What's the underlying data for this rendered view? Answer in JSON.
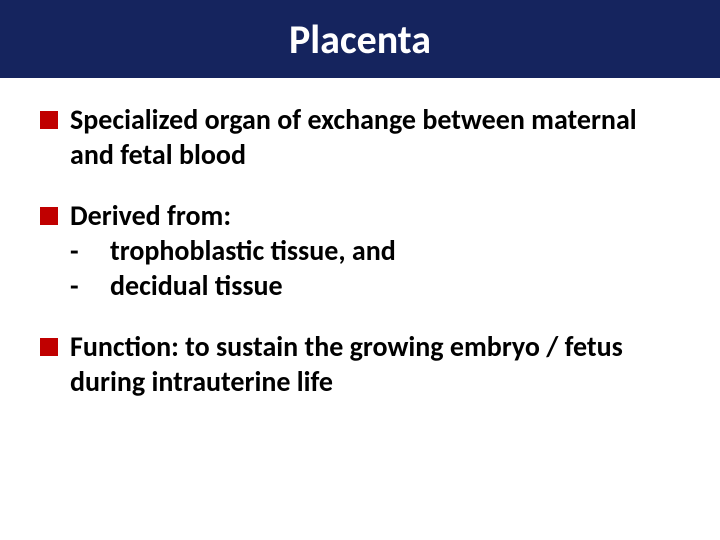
{
  "slide": {
    "title": "Placenta",
    "title_bg": "#15245e",
    "title_color": "#ffffff",
    "title_fontsize": 40,
    "bullet_color": "#c00000",
    "body_color": "#000000",
    "body_fontsize": 28,
    "background_color": "#ffffff",
    "items": [
      {
        "text": "Specialized organ of exchange between maternal and fetal blood",
        "subs": []
      },
      {
        "text": "Derived from:",
        "subs": [
          {
            "dash": "-",
            "text": "trophoblastic tissue, and"
          },
          {
            "dash": "-",
            "text": "decidual tissue"
          }
        ]
      },
      {
        "text": "Function: to sustain the growing embryo / fetus during intrauterine life",
        "subs": []
      }
    ]
  }
}
